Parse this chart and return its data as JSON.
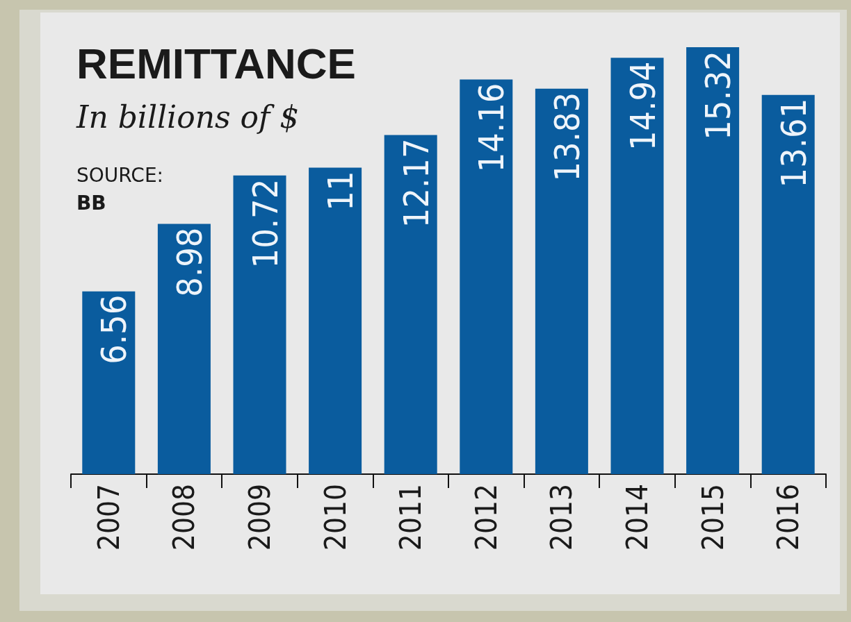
{
  "chart_data": {
    "type": "bar",
    "title": "REMITTANCE",
    "subtitle": "In billions of $",
    "annotations": [
      "SOURCE:",
      "BB"
    ],
    "categories": [
      "2007",
      "2008",
      "2009",
      "2010",
      "2011",
      "2012",
      "2013",
      "2014",
      "2015",
      "2016"
    ],
    "values": [
      6.56,
      8.98,
      10.72,
      11,
      12.17,
      14.16,
      13.83,
      14.94,
      15.32,
      13.61
    ],
    "color": "#0a5c9e",
    "data_labels": true
  }
}
